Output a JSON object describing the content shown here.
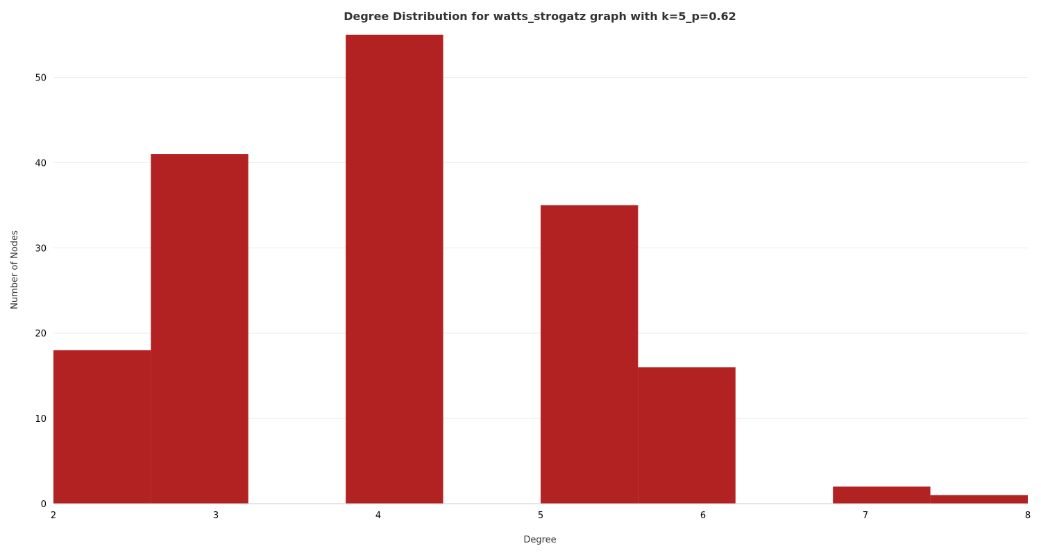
{
  "chart_data": {
    "type": "bar",
    "title": "Degree Distribution for watts_strogatz graph with k=5_p=0.62",
    "xlabel": "Degree",
    "ylabel": "Number of Nodes",
    "xlim": [
      2,
      8
    ],
    "ylim": [
      0,
      55
    ],
    "xticks": [
      2,
      3,
      4,
      5,
      6,
      7,
      8
    ],
    "yticks": [
      0,
      10,
      20,
      30,
      40,
      50
    ],
    "grid": "horizontal",
    "bar_color": "#b22222",
    "bins": [
      {
        "x0": 2.0,
        "x1": 2.6,
        "count": 18
      },
      {
        "x0": 2.6,
        "x1": 3.2,
        "count": 41
      },
      {
        "x0": 3.2,
        "x1": 3.8,
        "count": 0
      },
      {
        "x0": 3.8,
        "x1": 4.4,
        "count": 55
      },
      {
        "x0": 4.4,
        "x1": 5.0,
        "count": 0
      },
      {
        "x0": 5.0,
        "x1": 5.6,
        "count": 35
      },
      {
        "x0": 5.6,
        "x1": 6.2,
        "count": 16
      },
      {
        "x0": 6.2,
        "x1": 6.8,
        "count": 0
      },
      {
        "x0": 6.8,
        "x1": 7.4,
        "count": 2
      },
      {
        "x0": 7.4,
        "x1": 8.0,
        "count": 1
      }
    ]
  }
}
